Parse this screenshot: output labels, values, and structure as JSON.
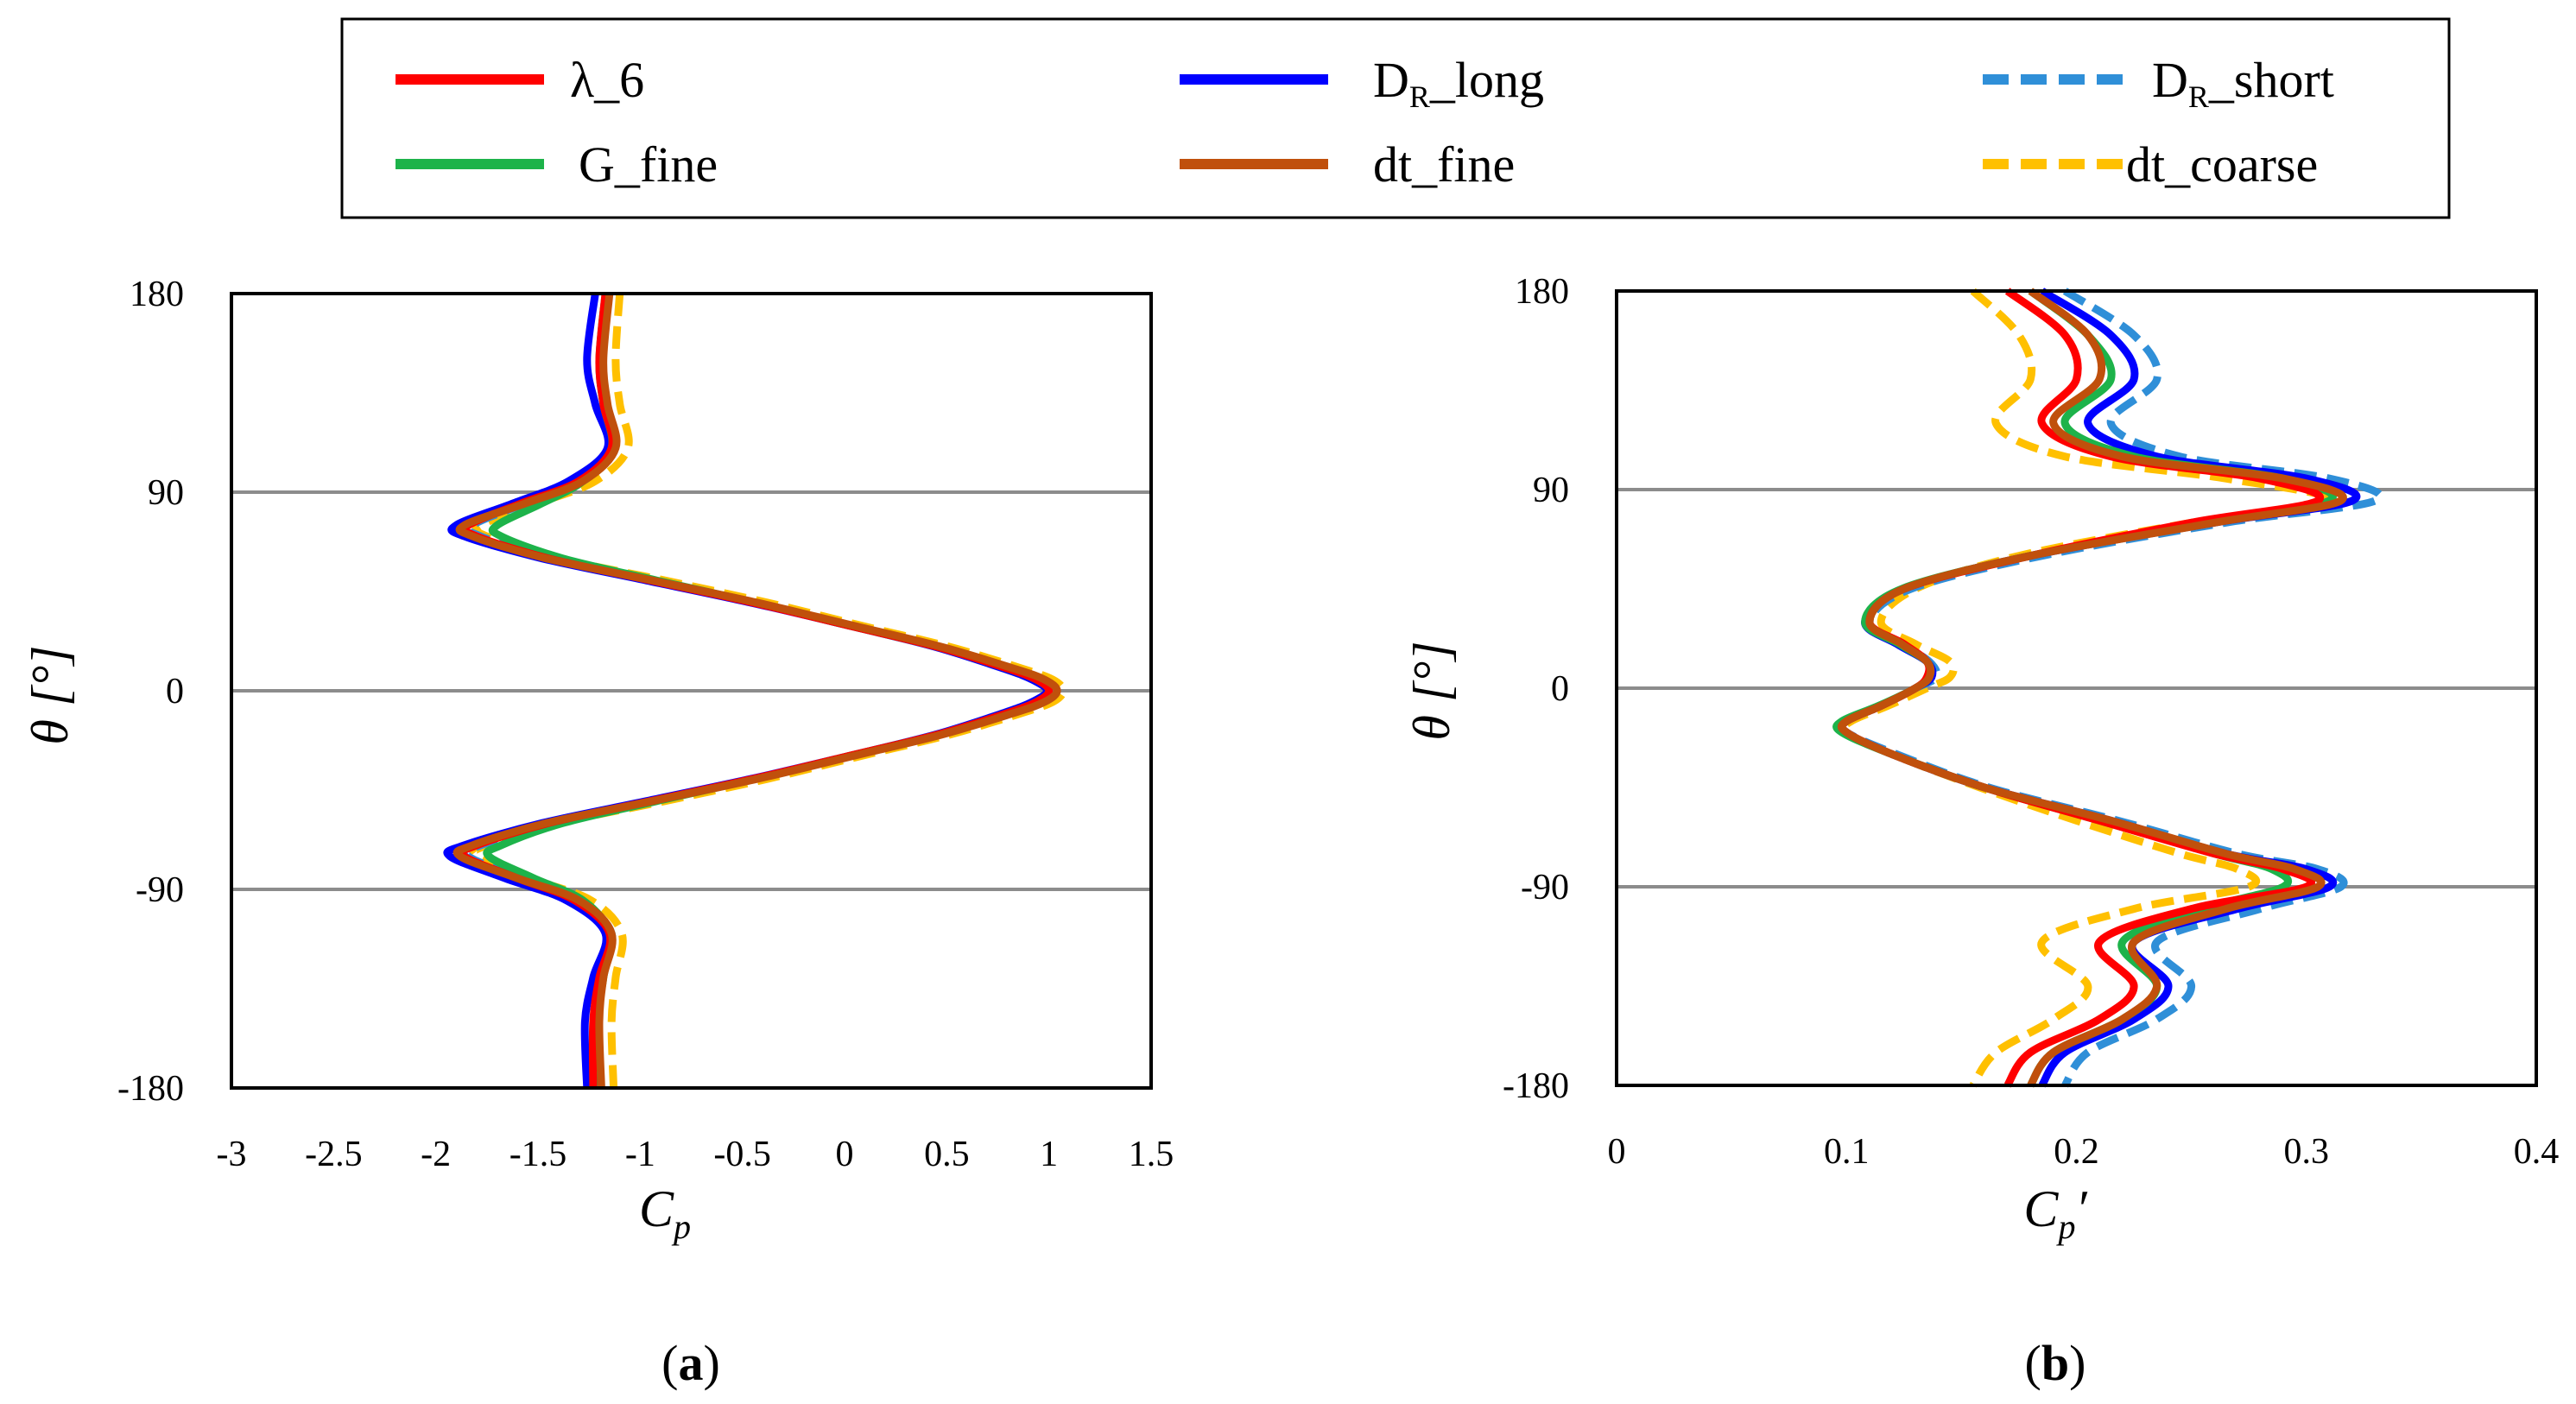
{
  "legend": {
    "entries": [
      {
        "key": "lambda6",
        "label": "λ_6",
        "color": "#ff0000",
        "dash": "solid"
      },
      {
        "key": "dr_long",
        "label_main": "D",
        "label_sub": "R",
        "label_rest": "_long",
        "color": "#0000ff",
        "dash": "solid"
      },
      {
        "key": "dr_short",
        "label_main": "D",
        "label_sub": "R",
        "label_rest": "_short",
        "color": "#2f8fd8",
        "dash": "dashed"
      },
      {
        "key": "g_fine",
        "label": "G_fine",
        "color": "#1db34a",
        "dash": "solid"
      },
      {
        "key": "dt_fine",
        "label": "dt_fine",
        "color": "#c0500c",
        "dash": "solid"
      },
      {
        "key": "dt_coarse",
        "label": "dt_coarse",
        "color": "#ffc000",
        "dash": "dashed"
      }
    ]
  },
  "panels": {
    "a": {
      "label_open": "(",
      "label_letter": "a",
      "label_close": ")"
    },
    "b": {
      "label_open": "(",
      "label_letter": "b",
      "label_close": ")"
    }
  },
  "chart_data": [
    {
      "id": "a",
      "type": "line",
      "xlabel_main": "C",
      "xlabel_sub": "p",
      "ylabel": "θ [°]",
      "xlim": [
        -3,
        1.5
      ],
      "ylim": [
        -180,
        180
      ],
      "xticks": [
        "-3",
        "-2.5",
        "-2",
        "-1.5",
        "-1",
        "-0.5",
        "0",
        "0.5",
        "1",
        "1.5"
      ],
      "xtick_values": [
        -3,
        -2.5,
        -2,
        -1.5,
        -1,
        -0.5,
        0,
        0.5,
        1,
        1.5
      ],
      "yticks": [
        "180",
        "90",
        "0",
        "-90",
        "-180"
      ],
      "ytick_values": [
        180,
        90,
        0,
        -90,
        -180
      ],
      "hgrid": [
        90,
        0,
        -90
      ],
      "y": [
        180,
        150,
        130,
        110,
        95,
        85,
        75,
        70,
        60,
        50,
        40,
        30,
        20,
        10,
        5,
        0,
        -5,
        -10,
        -20,
        -30,
        -40,
        -50,
        -60,
        -70,
        -75,
        -85,
        -95,
        -110,
        -130,
        -150,
        -180
      ],
      "series": [
        {
          "key": "lambda6",
          "name": "λ_6",
          "x": [
            -1.17,
            -1.2,
            -1.18,
            -1.14,
            -1.3,
            -1.58,
            -1.84,
            -1.8,
            -1.45,
            -0.95,
            -0.45,
            0.0,
            0.45,
            0.8,
            0.94,
            1.0,
            0.94,
            0.8,
            0.45,
            0.0,
            -0.45,
            -0.95,
            -1.45,
            -1.8,
            -1.86,
            -1.6,
            -1.32,
            -1.15,
            -1.2,
            -1.23,
            -1.23
          ]
        },
        {
          "key": "dr_long",
          "name": "D_R_long",
          "x": [
            -1.22,
            -1.26,
            -1.22,
            -1.16,
            -1.35,
            -1.62,
            -1.9,
            -1.86,
            -1.48,
            -0.97,
            -0.46,
            0.0,
            0.44,
            0.78,
            0.92,
            0.99,
            0.92,
            0.78,
            0.44,
            0.0,
            -0.46,
            -0.97,
            -1.48,
            -1.86,
            -1.93,
            -1.66,
            -1.36,
            -1.17,
            -1.23,
            -1.27,
            -1.26
          ]
        },
        {
          "key": "dr_short",
          "name": "D_R_short",
          "x": [
            -1.16,
            -1.19,
            -1.17,
            -1.13,
            -1.28,
            -1.56,
            -1.82,
            -1.78,
            -1.43,
            -0.93,
            -0.44,
            0.01,
            0.46,
            0.81,
            0.95,
            1.0,
            0.95,
            0.81,
            0.46,
            0.01,
            -0.44,
            -0.93,
            -1.43,
            -1.78,
            -1.84,
            -1.58,
            -1.3,
            -1.14,
            -1.19,
            -1.22,
            -1.22
          ]
        },
        {
          "key": "g_fine",
          "name": "G_fine",
          "x": [
            -1.17,
            -1.2,
            -1.18,
            -1.14,
            -1.28,
            -1.48,
            -1.7,
            -1.68,
            -1.38,
            -0.92,
            -0.44,
            0.0,
            0.45,
            0.8,
            0.94,
            1.0,
            0.94,
            0.8,
            0.45,
            0.0,
            -0.44,
            -0.92,
            -1.38,
            -1.68,
            -1.74,
            -1.52,
            -1.28,
            -1.15,
            -1.18,
            -1.21,
            -1.21
          ]
        },
        {
          "key": "dt_fine",
          "name": "dt_fine",
          "x": [
            -1.15,
            -1.18,
            -1.16,
            -1.12,
            -1.28,
            -1.56,
            -1.86,
            -1.82,
            -1.46,
            -0.94,
            -0.43,
            0.02,
            0.47,
            0.83,
            0.98,
            1.04,
            0.98,
            0.83,
            0.47,
            0.02,
            -0.43,
            -0.94,
            -1.46,
            -1.82,
            -1.88,
            -1.6,
            -1.3,
            -1.14,
            -1.18,
            -1.2,
            -1.19
          ]
        },
        {
          "key": "dt_coarse",
          "name": "dt_coarse",
          "x": [
            -1.1,
            -1.12,
            -1.1,
            -1.06,
            -1.22,
            -1.5,
            -1.78,
            -1.75,
            -1.4,
            -0.88,
            -0.38,
            0.06,
            0.51,
            0.87,
            1.02,
            1.07,
            1.02,
            0.87,
            0.51,
            0.06,
            -0.38,
            -0.88,
            -1.4,
            -1.75,
            -1.8,
            -1.54,
            -1.24,
            -1.09,
            -1.12,
            -1.14,
            -1.13
          ]
        }
      ]
    },
    {
      "id": "b",
      "type": "line",
      "xlabel_main": "C",
      "xlabel_sub": "p",
      "xlabel_prime": "′",
      "ylabel": "θ [°]",
      "xlim": [
        0,
        0.4
      ],
      "ylim": [
        -180,
        180
      ],
      "xticks": [
        "0",
        "0.1",
        "0.2",
        "0.3",
        "0.4"
      ],
      "xtick_values": [
        0,
        0.1,
        0.2,
        0.3,
        0.4
      ],
      "yticks": [
        "180",
        "90",
        "0",
        "-90",
        "-180"
      ],
      "ytick_values": [
        180,
        90,
        0,
        -90,
        -180
      ],
      "hgrid": [
        90,
        0,
        -90
      ],
      "y": [
        180,
        160,
        140,
        120,
        105,
        95,
        85,
        75,
        60,
        45,
        30,
        20,
        12,
        5,
        0,
        -8,
        -15,
        -20,
        -30,
        -45,
        -60,
        -75,
        -82,
        -90,
        -100,
        -115,
        -135,
        -150,
        -165,
        -180
      ],
      "series": [
        {
          "key": "lambda6",
          "name": "λ_6",
          "x": [
            0.17,
            0.195,
            0.2,
            0.185,
            0.215,
            0.28,
            0.305,
            0.25,
            0.18,
            0.125,
            0.11,
            0.125,
            0.135,
            0.135,
            0.13,
            0.115,
            0.1,
            0.1,
            0.12,
            0.16,
            0.21,
            0.26,
            0.29,
            0.3,
            0.25,
            0.21,
            0.225,
            0.21,
            0.18,
            0.17
          ]
        },
        {
          "key": "dr_long",
          "name": "D_R_long",
          "x": [
            0.185,
            0.215,
            0.225,
            0.205,
            0.235,
            0.3,
            0.32,
            0.26,
            0.18,
            0.125,
            0.108,
            0.122,
            0.135,
            0.137,
            0.13,
            0.115,
            0.1,
            0.1,
            0.12,
            0.16,
            0.215,
            0.265,
            0.3,
            0.31,
            0.27,
            0.225,
            0.24,
            0.225,
            0.195,
            0.185
          ]
        },
        {
          "key": "dr_short",
          "name": "D_R_short",
          "x": [
            0.195,
            0.225,
            0.235,
            0.215,
            0.245,
            0.31,
            0.33,
            0.265,
            0.185,
            0.128,
            0.11,
            0.124,
            0.136,
            0.139,
            0.13,
            0.115,
            0.1,
            0.1,
            0.122,
            0.162,
            0.218,
            0.27,
            0.305,
            0.315,
            0.28,
            0.235,
            0.25,
            0.235,
            0.205,
            0.195
          ]
        },
        {
          "key": "g_fine",
          "name": "G_fine",
          "x": [
            0.18,
            0.205,
            0.215,
            0.195,
            0.225,
            0.29,
            0.31,
            0.255,
            0.18,
            0.124,
            0.108,
            0.123,
            0.135,
            0.136,
            0.13,
            0.114,
            0.098,
            0.098,
            0.12,
            0.16,
            0.21,
            0.26,
            0.285,
            0.29,
            0.255,
            0.22,
            0.235,
            0.22,
            0.19,
            0.18
          ]
        },
        {
          "key": "dt_fine",
          "name": "dt_fine",
          "x": [
            0.18,
            0.205,
            0.21,
            0.19,
            0.22,
            0.29,
            0.315,
            0.26,
            0.18,
            0.125,
            0.11,
            0.124,
            0.135,
            0.136,
            0.13,
            0.115,
            0.1,
            0.1,
            0.12,
            0.16,
            0.215,
            0.265,
            0.295,
            0.305,
            0.265,
            0.225,
            0.235,
            0.22,
            0.19,
            0.18
          ]
        },
        {
          "key": "dt_coarse",
          "name": "dt_coarse",
          "x": [
            0.155,
            0.175,
            0.18,
            0.165,
            0.195,
            0.265,
            0.31,
            0.25,
            0.175,
            0.13,
            0.115,
            0.13,
            0.145,
            0.145,
            0.135,
            0.118,
            0.102,
            0.1,
            0.12,
            0.158,
            0.2,
            0.245,
            0.27,
            0.275,
            0.225,
            0.185,
            0.205,
            0.19,
            0.165,
            0.155
          ]
        }
      ]
    }
  ]
}
